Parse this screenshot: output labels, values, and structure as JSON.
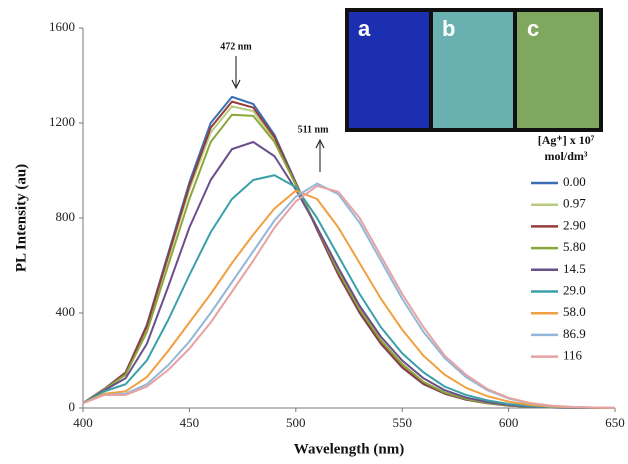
{
  "chart_data": {
    "type": "line",
    "xlabel": "Wavelength (nm)",
    "ylabel": "PL Intensity (au)",
    "xlim": [
      400,
      650
    ],
    "xticks": [
      400,
      450,
      500,
      550,
      600,
      650
    ],
    "ylim": [
      0,
      1600
    ],
    "yticks": [
      0,
      400,
      800,
      1200,
      1600
    ],
    "legend_title": [
      "[Ag⁺] x 10⁷",
      "mol/dm³"
    ],
    "annotations": [
      "472 nm",
      "511 nm"
    ],
    "inset_labels": [
      "a",
      "b",
      "c"
    ],
    "x": [
      400,
      410,
      420,
      430,
      440,
      450,
      460,
      470,
      480,
      490,
      500,
      510,
      520,
      530,
      540,
      550,
      560,
      570,
      580,
      590,
      600,
      610,
      620,
      630,
      640,
      650
    ],
    "series": [
      {
        "name": "0.00",
        "color": "#3a6fb5",
        "values": [
          20,
          80,
          150,
          350,
          650,
          950,
          1200,
          1310,
          1280,
          1150,
          950,
          750,
          560,
          400,
          270,
          170,
          100,
          60,
          35,
          20,
          10,
          5,
          2,
          1,
          0,
          0
        ]
      },
      {
        "name": "0.97",
        "color": "#b9cc80",
        "values": [
          20,
          80,
          145,
          340,
          630,
          920,
          1160,
          1270,
          1250,
          1130,
          940,
          750,
          565,
          405,
          275,
          175,
          105,
          62,
          36,
          20,
          10,
          5,
          2,
          1,
          0,
          0
        ]
      },
      {
        "name": "2.90",
        "color": "#973b3b",
        "values": [
          20,
          80,
          148,
          345,
          640,
          935,
          1180,
          1290,
          1265,
          1140,
          945,
          752,
          562,
          402,
          272,
          172,
          102,
          61,
          35,
          20,
          10,
          5,
          2,
          1,
          0,
          0
        ]
      },
      {
        "name": "5.80",
        "color": "#8aa83a",
        "values": [
          20,
          78,
          140,
          320,
          600,
          880,
          1120,
          1235,
          1230,
          1120,
          940,
          760,
          575,
          415,
          285,
          185,
          110,
          65,
          38,
          21,
          11,
          5,
          2,
          1,
          0,
          0
        ]
      },
      {
        "name": "14.5",
        "color": "#6a4f8c",
        "values": [
          20,
          75,
          125,
          270,
          510,
          760,
          960,
          1090,
          1120,
          1060,
          920,
          760,
          590,
          430,
          300,
          200,
          125,
          75,
          44,
          25,
          13,
          6,
          3,
          1,
          0,
          0
        ]
      },
      {
        "name": "29.0",
        "color": "#3aa0a8",
        "values": [
          20,
          70,
          100,
          200,
          370,
          560,
          740,
          880,
          960,
          980,
          930,
          800,
          640,
          480,
          340,
          230,
          150,
          90,
          55,
          32,
          17,
          8,
          4,
          2,
          1,
          0
        ]
      },
      {
        "name": "58.0",
        "color": "#f0a040",
        "values": [
          20,
          60,
          70,
          130,
          240,
          360,
          480,
          610,
          730,
          840,
          915,
          880,
          760,
          610,
          460,
          330,
          220,
          140,
          85,
          50,
          27,
          13,
          6,
          3,
          1,
          0
        ]
      },
      {
        "name": "86.9",
        "color": "#93b7d8",
        "values": [
          20,
          55,
          60,
          100,
          180,
          280,
          400,
          530,
          660,
          790,
          890,
          945,
          900,
          780,
          620,
          460,
          320,
          210,
          130,
          75,
          40,
          20,
          9,
          4,
          2,
          1
        ]
      },
      {
        "name": "116",
        "color": "#e8a2a2",
        "values": [
          20,
          55,
          55,
          90,
          160,
          250,
          360,
          490,
          620,
          760,
          870,
          935,
          910,
          800,
          640,
          480,
          340,
          220,
          140,
          80,
          43,
          21,
          10,
          4,
          2,
          1
        ]
      }
    ]
  }
}
